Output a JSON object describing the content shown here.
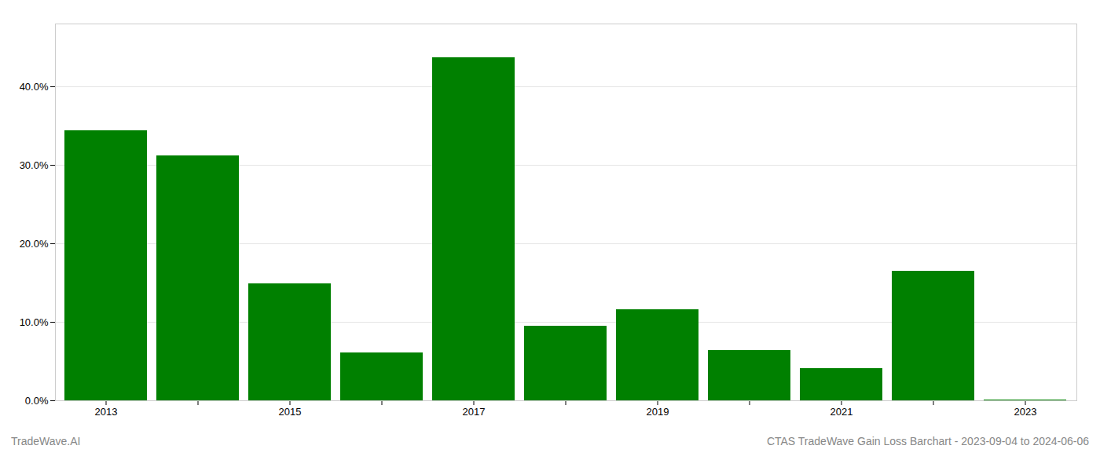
{
  "chart_data": {
    "type": "bar",
    "categories": [
      "2013",
      null,
      "2015",
      null,
      "2017",
      null,
      "2019",
      null,
      "2021",
      null,
      "2023"
    ],
    "values": [
      0.344,
      0.312,
      0.149,
      0.061,
      0.437,
      0.095,
      0.116,
      0.064,
      0.041,
      0.165,
      0.001
    ],
    "color": "#008000",
    "ylim": [
      0,
      0.48
    ],
    "yticks": [
      {
        "value": 0.0,
        "label": "0.0%"
      },
      {
        "value": 0.1,
        "label": "10.0%"
      },
      {
        "value": 0.2,
        "label": "20.0%"
      },
      {
        "value": 0.3,
        "label": "30.0%"
      },
      {
        "value": 0.4,
        "label": "40.0%"
      }
    ],
    "grid": true,
    "annotations": [
      "TradeWave.AI",
      "CTAS TradeWave Gain Loss Barchart - 2023-09-04 to 2024-06-06"
    ]
  }
}
